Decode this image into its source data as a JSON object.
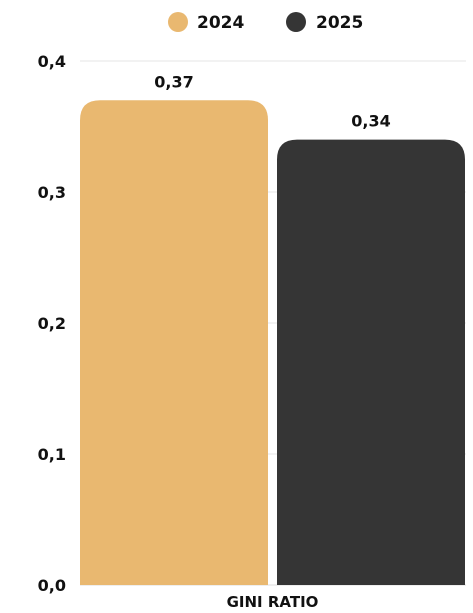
{
  "chart_data": {
    "type": "bar",
    "categories": [
      "GINI RATIO"
    ],
    "series": [
      {
        "name": "2024",
        "values": [
          0.37
        ],
        "value_labels": [
          "0,37"
        ],
        "color": "#E9B870"
      },
      {
        "name": "2025",
        "values": [
          0.34
        ],
        "value_labels": [
          "0,34"
        ],
        "color": "#353535"
      }
    ],
    "ylim": [
      0,
      0.4
    ],
    "y_ticks": [
      {
        "value": 0.0,
        "label": "0,0"
      },
      {
        "value": 0.1,
        "label": "0,1"
      },
      {
        "value": 0.2,
        "label": "0,2"
      },
      {
        "value": 0.3,
        "label": "0,3"
      },
      {
        "value": 0.4,
        "label": "0,4"
      }
    ],
    "title": "",
    "xlabel": "",
    "ylabel": "",
    "legend_position": "top-center",
    "grid": true,
    "grid_color": "#e4e4e4"
  }
}
